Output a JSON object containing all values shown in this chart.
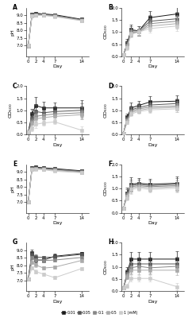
{
  "days": [
    0,
    1,
    2,
    4,
    7,
    14
  ],
  "xticks": [
    0,
    2,
    4,
    7,
    14
  ],
  "xticklabels": [
    "0",
    "2",
    "4",
    "7",
    "14"
  ],
  "xlim": [
    -0.5,
    16
  ],
  "legend_labels": [
    "0.01",
    "0.05",
    "0.1",
    "0.5",
    "1 (mM)"
  ],
  "panels": {
    "A": {
      "type": "pH",
      "ylabel": "pH",
      "ylim": [
        6.3,
        9.5
      ],
      "yticks": [
        7.0,
        7.5,
        8.0,
        8.5,
        9.0
      ],
      "data": [
        [
          7.0,
          9.1,
          9.15,
          9.1,
          9.05,
          8.75
        ],
        [
          7.0,
          9.05,
          9.1,
          9.1,
          9.0,
          8.72
        ],
        [
          7.0,
          9.0,
          9.05,
          9.05,
          8.98,
          8.7
        ],
        [
          7.0,
          8.98,
          9.03,
          9.02,
          8.95,
          8.68
        ],
        [
          7.0,
          8.95,
          9.0,
          9.0,
          8.92,
          8.65
        ]
      ],
      "errors": [
        [
          0.12,
          0.05,
          0.05,
          0.05,
          0.05,
          0.08
        ],
        [
          0.12,
          0.05,
          0.05,
          0.05,
          0.05,
          0.08
        ],
        [
          0.12,
          0.05,
          0.05,
          0.05,
          0.05,
          0.08
        ],
        [
          0.12,
          0.05,
          0.05,
          0.05,
          0.05,
          0.08
        ],
        [
          0.12,
          0.05,
          0.05,
          0.05,
          0.05,
          0.08
        ]
      ]
    },
    "B": {
      "type": "OD",
      "ylabel": "OD$_{600}$",
      "ylim": [
        0.0,
        2.0
      ],
      "yticks": [
        0.0,
        0.5,
        1.0,
        1.5,
        2.0
      ],
      "data": [
        [
          0.05,
          0.55,
          1.1,
          1.05,
          1.6,
          1.75
        ],
        [
          0.05,
          0.5,
          1.05,
          1.05,
          1.45,
          1.55
        ],
        [
          0.05,
          0.45,
          1.0,
          1.0,
          1.35,
          1.45
        ],
        [
          0.05,
          0.4,
          0.95,
          1.0,
          1.25,
          1.35
        ],
        [
          0.05,
          0.35,
          0.9,
          1.0,
          1.15,
          1.25
        ]
      ],
      "errors": [
        [
          0.02,
          0.18,
          0.22,
          0.2,
          0.28,
          0.35
        ],
        [
          0.02,
          0.15,
          0.2,
          0.18,
          0.24,
          0.28
        ],
        [
          0.02,
          0.12,
          0.18,
          0.16,
          0.22,
          0.25
        ],
        [
          0.02,
          0.1,
          0.15,
          0.14,
          0.2,
          0.22
        ],
        [
          0.02,
          0.08,
          0.12,
          0.12,
          0.18,
          0.2
        ]
      ]
    },
    "C": {
      "type": "OD",
      "ylabel": "OD$_{600}$",
      "ylim": [
        0.0,
        2.0
      ],
      "yticks": [
        0.0,
        0.5,
        1.0,
        1.5,
        2.0
      ],
      "data": [
        [
          0.1,
          0.85,
          1.2,
          1.1,
          1.1,
          1.1
        ],
        [
          0.1,
          0.7,
          0.95,
          0.9,
          0.95,
          1.0
        ],
        [
          0.1,
          0.55,
          0.75,
          0.8,
          0.85,
          0.9
        ],
        [
          0.1,
          0.45,
          0.65,
          0.7,
          0.75,
          0.82
        ],
        [
          0.1,
          0.22,
          0.42,
          0.48,
          0.52,
          0.18
        ]
      ],
      "errors": [
        [
          0.04,
          0.22,
          0.35,
          0.25,
          0.22,
          0.32
        ],
        [
          0.04,
          0.18,
          0.28,
          0.22,
          0.18,
          0.28
        ],
        [
          0.04,
          0.14,
          0.22,
          0.18,
          0.14,
          0.22
        ],
        [
          0.04,
          0.1,
          0.18,
          0.15,
          0.12,
          0.18
        ],
        [
          0.04,
          0.08,
          0.14,
          0.12,
          0.1,
          0.14
        ]
      ]
    },
    "D": {
      "type": "OD",
      "ylabel": "OD$_{600}$",
      "ylim": [
        0.0,
        2.0
      ],
      "yticks": [
        0.0,
        0.5,
        1.0,
        1.5,
        2.0
      ],
      "data": [
        [
          0.05,
          0.72,
          1.1,
          1.2,
          1.35,
          1.38
        ],
        [
          0.05,
          0.65,
          1.02,
          1.12,
          1.22,
          1.28
        ],
        [
          0.05,
          0.6,
          0.96,
          1.06,
          1.14,
          1.18
        ],
        [
          0.05,
          0.55,
          0.9,
          1.0,
          1.08,
          1.12
        ],
        [
          0.05,
          0.5,
          0.85,
          0.95,
          1.02,
          1.06
        ]
      ],
      "errors": [
        [
          0.02,
          0.15,
          0.22,
          0.2,
          0.22,
          0.25
        ],
        [
          0.02,
          0.12,
          0.18,
          0.18,
          0.2,
          0.22
        ],
        [
          0.02,
          0.1,
          0.15,
          0.15,
          0.18,
          0.2
        ],
        [
          0.02,
          0.08,
          0.12,
          0.12,
          0.15,
          0.18
        ],
        [
          0.02,
          0.06,
          0.1,
          0.1,
          0.12,
          0.14
        ]
      ]
    },
    "E": {
      "type": "pH",
      "ylabel": "pH",
      "ylim": [
        6.3,
        9.5
      ],
      "yticks": [
        7.0,
        7.5,
        8.0,
        8.5,
        9.0
      ],
      "data": [
        [
          7.0,
          9.28,
          9.32,
          9.28,
          9.22,
          9.08
        ],
        [
          7.0,
          9.25,
          9.28,
          9.25,
          9.18,
          9.05
        ],
        [
          7.0,
          9.22,
          9.25,
          9.22,
          9.15,
          9.02
        ],
        [
          7.0,
          9.18,
          9.22,
          9.18,
          9.1,
          8.98
        ],
        [
          7.0,
          9.15,
          9.18,
          9.15,
          9.05,
          8.95
        ]
      ],
      "errors": [
        [
          0.05,
          0.04,
          0.04,
          0.04,
          0.04,
          0.04
        ],
        [
          0.05,
          0.04,
          0.04,
          0.04,
          0.04,
          0.04
        ],
        [
          0.05,
          0.04,
          0.04,
          0.04,
          0.04,
          0.04
        ],
        [
          0.05,
          0.04,
          0.04,
          0.04,
          0.04,
          0.04
        ],
        [
          0.05,
          0.04,
          0.04,
          0.04,
          0.04,
          0.04
        ]
      ]
    },
    "F": {
      "type": "OD",
      "ylabel": "OD$_{600}$",
      "ylim": [
        0.0,
        2.0
      ],
      "yticks": [
        0.0,
        0.5,
        1.0,
        1.5,
        2.0
      ],
      "data": [
        [
          0.18,
          0.82,
          1.18,
          1.22,
          1.18,
          1.22
        ],
        [
          0.18,
          0.78,
          1.12,
          1.18,
          1.12,
          1.18
        ],
        [
          0.18,
          0.72,
          1.08,
          1.12,
          1.08,
          1.12
        ],
        [
          0.18,
          0.68,
          1.02,
          1.08,
          1.02,
          1.08
        ],
        [
          0.18,
          0.62,
          0.96,
          1.02,
          0.96,
          1.02
        ]
      ],
      "errors": [
        [
          0.05,
          0.22,
          0.28,
          0.22,
          0.22,
          0.28
        ],
        [
          0.05,
          0.2,
          0.24,
          0.2,
          0.2,
          0.24
        ],
        [
          0.05,
          0.16,
          0.22,
          0.16,
          0.16,
          0.22
        ],
        [
          0.05,
          0.14,
          0.2,
          0.14,
          0.14,
          0.2
        ],
        [
          0.05,
          0.12,
          0.18,
          0.12,
          0.12,
          0.18
        ]
      ]
    },
    "G": {
      "type": "pH",
      "ylabel": "pH",
      "ylim": [
        6.3,
        9.5
      ],
      "yticks": [
        7.0,
        7.5,
        8.0,
        8.5,
        9.0
      ],
      "data": [
        [
          7.08,
          8.85,
          8.35,
          8.35,
          8.6,
          8.78
        ],
        [
          7.08,
          8.72,
          8.55,
          8.52,
          8.55,
          8.72
        ],
        [
          7.08,
          8.52,
          8.35,
          8.32,
          8.35,
          8.52
        ],
        [
          7.08,
          8.22,
          8.02,
          7.82,
          7.88,
          8.32
        ],
        [
          7.08,
          7.82,
          7.58,
          7.42,
          7.18,
          7.78
        ]
      ],
      "errors": [
        [
          0.05,
          0.18,
          0.18,
          0.15,
          0.15,
          0.12
        ],
        [
          0.05,
          0.15,
          0.15,
          0.12,
          0.12,
          0.1
        ],
        [
          0.05,
          0.12,
          0.12,
          0.1,
          0.1,
          0.08
        ],
        [
          0.05,
          0.12,
          0.12,
          0.1,
          0.1,
          0.08
        ],
        [
          0.05,
          0.12,
          0.12,
          0.1,
          0.1,
          0.08
        ]
      ]
    },
    "H": {
      "type": "OD",
      "ylabel": "OD$_{600}$",
      "ylim": [
        0.0,
        2.0
      ],
      "yticks": [
        0.0,
        0.5,
        1.0,
        1.5,
        2.0
      ],
      "data": [
        [
          0.12,
          0.78,
          1.32,
          1.32,
          1.32,
          1.32
        ],
        [
          0.12,
          0.72,
          1.12,
          1.12,
          1.12,
          1.12
        ],
        [
          0.12,
          0.65,
          0.96,
          1.02,
          0.96,
          1.02
        ],
        [
          0.12,
          0.6,
          0.86,
          0.86,
          0.86,
          0.86
        ],
        [
          0.12,
          0.2,
          0.52,
          0.52,
          0.52,
          0.18
        ]
      ],
      "errors": [
        [
          0.04,
          0.22,
          0.28,
          0.28,
          0.28,
          0.32
        ],
        [
          0.04,
          0.18,
          0.24,
          0.24,
          0.24,
          0.28
        ],
        [
          0.04,
          0.14,
          0.22,
          0.22,
          0.22,
          0.24
        ],
        [
          0.04,
          0.12,
          0.18,
          0.18,
          0.18,
          0.2
        ],
        [
          0.04,
          0.08,
          0.14,
          0.14,
          0.14,
          0.16
        ]
      ]
    }
  },
  "colors": [
    "#1a1a1a",
    "#555555",
    "#888888",
    "#aaaaaa",
    "#cccccc"
  ],
  "markersize": 2.5,
  "linewidth": 0.7,
  "capsize": 1.2,
  "elinewidth": 0.5,
  "markeredgewidth": 0.4
}
